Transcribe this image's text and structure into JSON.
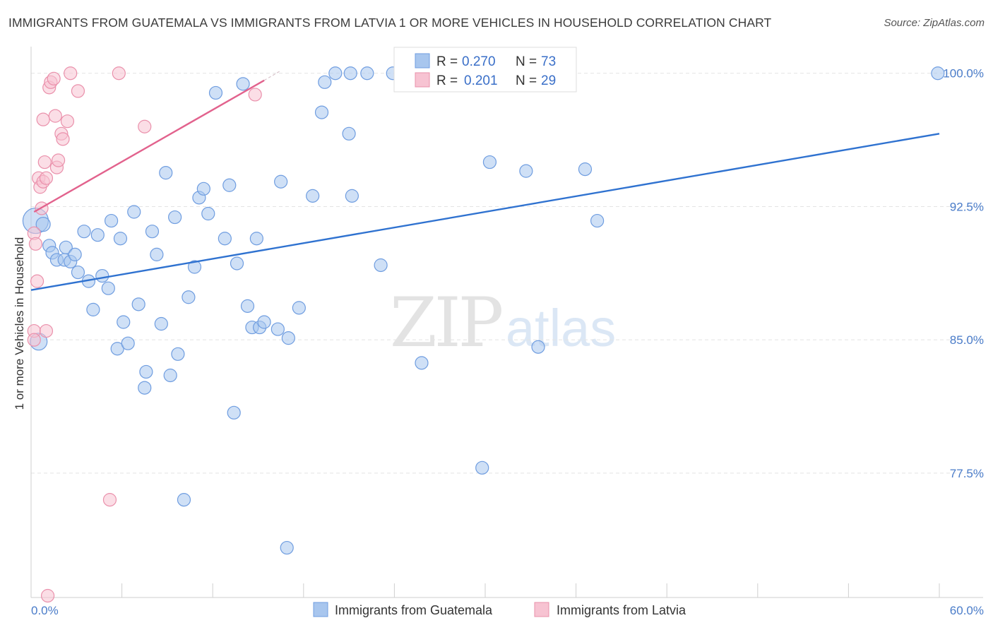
{
  "title": "IMMIGRANTS FROM GUATEMALA VS IMMIGRANTS FROM LATVIA 1 OR MORE VEHICLES IN HOUSEHOLD CORRELATION CHART",
  "source": "Source: ZipAtlas.com",
  "watermark": {
    "zip": "ZIP",
    "atlas": "atlas"
  },
  "chart_data": {
    "type": "scatter",
    "title": "IMMIGRANTS FROM GUATEMALA VS IMMIGRANTS FROM LATVIA 1 OR MORE VEHICLES IN HOUSEHOLD CORRELATION CHART",
    "xlabel": "",
    "ylabel": "1 or more Vehicles in Household",
    "xlim": [
      0,
      60
    ],
    "ylim": [
      70.5,
      101.5
    ],
    "x_tick_labels": [
      "0.0%",
      "60.0%"
    ],
    "y_ticks": [
      100.0,
      92.5,
      85.0,
      77.5
    ],
    "y_tick_labels": [
      "100.0%",
      "92.5%",
      "85.0%",
      "77.5%"
    ],
    "grid": true,
    "legend_position": "top-center",
    "series": [
      {
        "name": "Immigrants from Guatemala",
        "color": "#a8c6ee",
        "stroke": "#6f9de0",
        "line_color": "#2f72d0",
        "R": "0.270",
        "N": "73",
        "trend": {
          "x": [
            0,
            60
          ],
          "y": [
            87.8,
            96.6
          ]
        },
        "points": [
          [
            0.3,
            91.7,
            18
          ],
          [
            0.5,
            84.9,
            12
          ],
          [
            0.8,
            91.5,
            10
          ],
          [
            1.2,
            90.3,
            9
          ],
          [
            1.4,
            89.9,
            9
          ],
          [
            1.7,
            89.5,
            9
          ],
          [
            2.2,
            89.5,
            9
          ],
          [
            2.3,
            90.2,
            9
          ],
          [
            2.6,
            89.4,
            9
          ],
          [
            2.9,
            89.8,
            9
          ],
          [
            3.1,
            88.8,
            9
          ],
          [
            3.5,
            91.1,
            9
          ],
          [
            3.8,
            88.3,
            9
          ],
          [
            4.1,
            86.7,
            9
          ],
          [
            4.4,
            90.9,
            9
          ],
          [
            4.7,
            88.6,
            9
          ],
          [
            5.1,
            87.9,
            9
          ],
          [
            5.3,
            91.7,
            9
          ],
          [
            5.7,
            84.5,
            9
          ],
          [
            5.9,
            90.7,
            9
          ],
          [
            6.1,
            86.0,
            9
          ],
          [
            6.4,
            84.8,
            9
          ],
          [
            6.8,
            92.2,
            9
          ],
          [
            7.1,
            87.0,
            9
          ],
          [
            7.5,
            82.3,
            9
          ],
          [
            7.6,
            83.2,
            9
          ],
          [
            8.0,
            91.1,
            9
          ],
          [
            8.3,
            89.8,
            9
          ],
          [
            8.6,
            85.9,
            9
          ],
          [
            8.9,
            94.4,
            9
          ],
          [
            9.2,
            83.0,
            9
          ],
          [
            9.5,
            91.9,
            9
          ],
          [
            9.7,
            84.2,
            9
          ],
          [
            10.1,
            76.0,
            9
          ],
          [
            10.4,
            87.4,
            9
          ],
          [
            10.8,
            89.1,
            9
          ],
          [
            11.1,
            93.0,
            9
          ],
          [
            11.4,
            93.5,
            9
          ],
          [
            11.7,
            92.1,
            9
          ],
          [
            12.2,
            98.9,
            9
          ],
          [
            12.8,
            90.7,
            9
          ],
          [
            13.1,
            93.7,
            9
          ],
          [
            13.4,
            80.9,
            9
          ],
          [
            13.6,
            89.3,
            9
          ],
          [
            14.0,
            99.4,
            9
          ],
          [
            14.3,
            86.9,
            9
          ],
          [
            14.6,
            85.7,
            9
          ],
          [
            14.9,
            90.7,
            9
          ],
          [
            15.1,
            85.7,
            9
          ],
          [
            15.4,
            86.0,
            9
          ],
          [
            16.3,
            85.6,
            9
          ],
          [
            16.5,
            93.9,
            9
          ],
          [
            16.9,
            73.3,
            9
          ],
          [
            17.0,
            85.1,
            9
          ],
          [
            17.7,
            86.8,
            9
          ],
          [
            18.6,
            93.1,
            9
          ],
          [
            19.2,
            97.8,
            9
          ],
          [
            19.4,
            99.5,
            9
          ],
          [
            20.1,
            100.0,
            9
          ],
          [
            21.0,
            96.6,
            9
          ],
          [
            21.2,
            93.1,
            9
          ],
          [
            21.1,
            100.0,
            9
          ],
          [
            22.2,
            100.0,
            9
          ],
          [
            23.1,
            89.2,
            9
          ],
          [
            23.9,
            100.0,
            9
          ],
          [
            25.8,
            83.7,
            9
          ],
          [
            29.8,
            77.8,
            9
          ],
          [
            30.3,
            95.0,
            9
          ],
          [
            32.7,
            94.5,
            9
          ],
          [
            33.5,
            84.6,
            9
          ],
          [
            36.6,
            94.6,
            9
          ],
          [
            37.4,
            91.7,
            9
          ],
          [
            59.9,
            100.0,
            9
          ]
        ]
      },
      {
        "name": "Immigrants from Latvia",
        "color": "#f7c3d2",
        "stroke": "#ea90ab",
        "line_color": "#e2628d",
        "R": "0.201",
        "N": "29",
        "trend": {
          "x": [
            0.2,
            15.4
          ],
          "y": [
            92.2,
            99.6
          ]
        },
        "trend_dash": {
          "x": [
            15.4,
            16.5
          ],
          "y": [
            99.6,
            100.15
          ]
        },
        "points": [
          [
            0.2,
            85.5,
            9
          ],
          [
            0.2,
            85.0,
            9
          ],
          [
            0.2,
            91.0,
            9
          ],
          [
            0.3,
            90.4,
            9
          ],
          [
            0.4,
            88.3,
            9
          ],
          [
            0.5,
            94.1,
            9
          ],
          [
            0.6,
            93.6,
            9
          ],
          [
            0.7,
            92.4,
            9
          ],
          [
            0.8,
            97.4,
            9
          ],
          [
            0.8,
            93.9,
            9
          ],
          [
            0.9,
            95.0,
            9
          ],
          [
            1.0,
            94.1,
            9
          ],
          [
            1.0,
            85.5,
            9
          ],
          [
            1.1,
            70.6,
            9
          ],
          [
            1.2,
            99.2,
            9
          ],
          [
            1.3,
            99.5,
            9
          ],
          [
            1.5,
            99.7,
            9
          ],
          [
            1.6,
            97.6,
            9
          ],
          [
            1.7,
            94.7,
            9
          ],
          [
            1.8,
            95.1,
            9
          ],
          [
            2.0,
            96.6,
            9
          ],
          [
            2.1,
            96.3,
            9
          ],
          [
            2.4,
            97.3,
            9
          ],
          [
            2.6,
            100.0,
            9
          ],
          [
            3.1,
            99.0,
            9
          ],
          [
            5.2,
            76.0,
            9
          ],
          [
            5.8,
            100.0,
            9
          ],
          [
            7.5,
            97.0,
            9
          ],
          [
            14.8,
            98.8,
            9
          ]
        ]
      }
    ]
  },
  "legend": {
    "rows": [
      {
        "r_label": "R = ",
        "r_value": "0.270",
        "n_label": "N = ",
        "n_value": "73"
      },
      {
        "r_label": "R = ",
        "r_value": "0.201",
        "n_label": "N = ",
        "n_value": "29"
      }
    ]
  },
  "bottom_legend": [
    "Immigrants from Guatemala",
    "Immigrants from Latvia"
  ]
}
